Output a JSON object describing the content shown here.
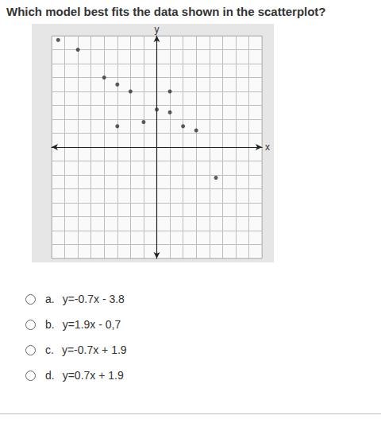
{
  "question": "Which model best fits the data shown in the scatterplot?",
  "options": [
    {
      "letter": "a.",
      "text": "y=-0.7x - 3.8"
    },
    {
      "letter": "b.",
      "text": "y=1.9x - 0,7"
    },
    {
      "letter": "c.",
      "text": "y=-0.7x + 1.9"
    },
    {
      "letter": "d.",
      "text": "y=0.7x + 1.9"
    }
  ],
  "chart_data": {
    "type": "scatter",
    "x_label": "x",
    "y_label": "y",
    "x": [
      -7.5,
      -6,
      -4,
      -3,
      -2,
      1,
      0,
      1,
      -3,
      -1,
      2,
      3,
      4.5
    ],
    "values": [
      7.7,
      7,
      5,
      4.5,
      4,
      4,
      2.7,
      2.5,
      1.5,
      1.8,
      1.5,
      1.2,
      -2.2
    ],
    "color": "#333333",
    "marker": "circle",
    "xlim": [
      -8,
      8
    ],
    "ylim": [
      -8,
      8
    ],
    "xticks": [
      -8,
      -7,
      -6,
      -5,
      -4,
      -3,
      -2,
      -1,
      0,
      1,
      2,
      3,
      4,
      5,
      6,
      7,
      8
    ],
    "yticks": [
      -8,
      -7,
      -6,
      -5,
      -4,
      -3,
      -2,
      -1,
      0,
      1,
      2,
      3,
      4,
      5,
      6,
      7,
      8
    ],
    "grid": true,
    "tick_labels": false
  }
}
